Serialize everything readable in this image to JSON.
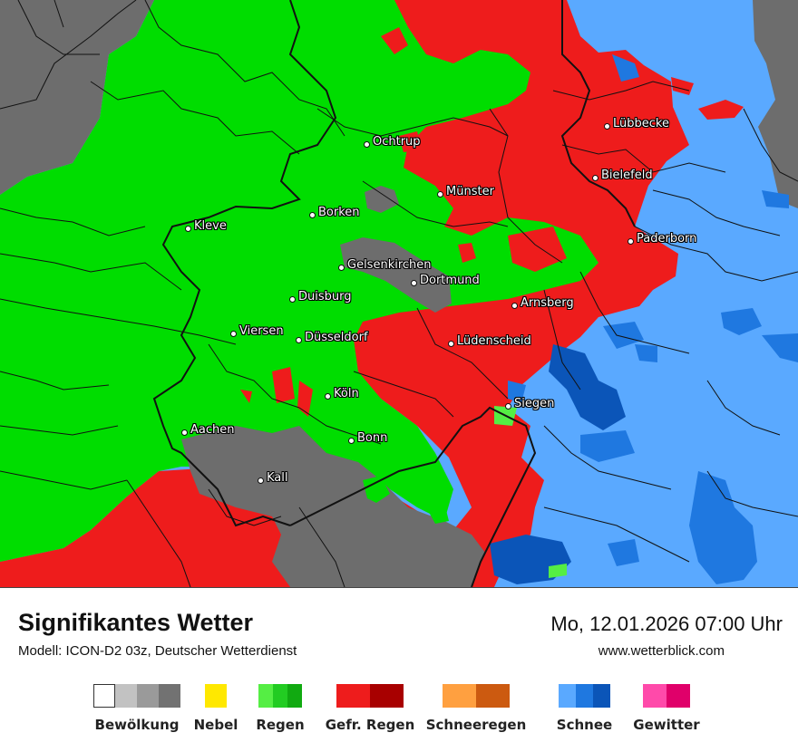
{
  "header": {
    "title": "Signifikantes Wetter",
    "model": "Modell: ICON-D2 03z, Deutscher Wetterdienst",
    "datetime": "Mo, 12.01.2026 07:00 Uhr",
    "website": "www.wetterblick.com"
  },
  "colors": {
    "dark_gray": "#6d6d6d",
    "green": "#00dd00",
    "red": "#ee1c1c",
    "snow_light": "#5aa9ff",
    "snow_mid": "#1f78e0",
    "snow_dark": "#0b55b8",
    "border": "#111111"
  },
  "cities": [
    {
      "name": "Lübbecke"
    },
    {
      "name": "Ochtrup"
    },
    {
      "name": "Bielefeld"
    },
    {
      "name": "Münster"
    },
    {
      "name": "Kleve"
    },
    {
      "name": "Borken"
    },
    {
      "name": "Paderborn"
    },
    {
      "name": "Gelsenkirchen"
    },
    {
      "name": "Dortmund"
    },
    {
      "name": "Duisburg"
    },
    {
      "name": "Arnsberg"
    },
    {
      "name": "Viersen"
    },
    {
      "name": "Düsseldorf"
    },
    {
      "name": "Lüdenscheid"
    },
    {
      "name": "Köln"
    },
    {
      "name": "Siegen"
    },
    {
      "name": "Aachen"
    },
    {
      "name": "Bonn"
    },
    {
      "name": "Kall"
    }
  ],
  "legend": [
    {
      "label": "Bewölkung",
      "colors": [
        "#ffffff",
        "#c2c2c2",
        "#9a9a9a",
        "#727272"
      ]
    },
    {
      "label": "Nebel",
      "colors": [
        "#ffe800"
      ]
    },
    {
      "label": "Regen",
      "colors": [
        "#55ee44",
        "#22cc22",
        "#11aa11"
      ]
    },
    {
      "label": "Gefr. Regen",
      "colors": [
        "#ee1c1c",
        "#a80000"
      ]
    },
    {
      "label": "Schneeregen",
      "colors": [
        "#ffa040",
        "#cc5a10"
      ]
    },
    {
      "label": "Schnee",
      "colors": [
        "#5aa9ff",
        "#1f78e0",
        "#0b55b8"
      ]
    },
    {
      "label": "Gewitter",
      "colors": [
        "#ff4aaa",
        "#e0006a"
      ]
    }
  ]
}
